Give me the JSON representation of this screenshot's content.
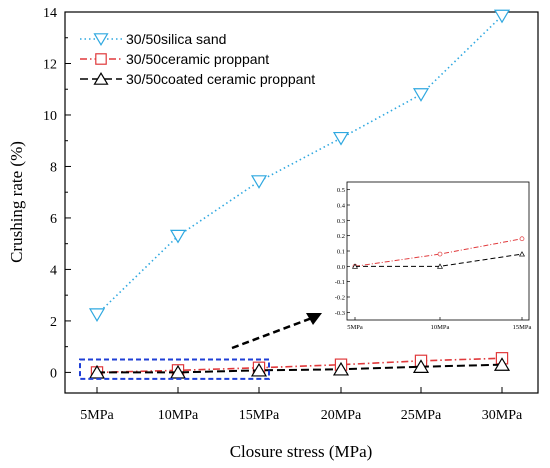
{
  "chart_data": {
    "type": "line",
    "title": "",
    "xlabel": "Closure stress (MPa)",
    "ylabel": "Crushing rate (%)",
    "categories": [
      "5MPa",
      "10MPa",
      "15MPa",
      "20MPa",
      "25MPa",
      "30MPa"
    ],
    "ylim": [
      -0.8,
      14
    ],
    "yticks": [
      "0",
      "2",
      "4",
      "6",
      "8",
      "10",
      "12",
      "14"
    ],
    "grid": false,
    "legend_position": "top-left",
    "series": [
      {
        "name": "30/50silica sand",
        "values": [
          2.25,
          5.3,
          7.42,
          9.1,
          10.8,
          13.85
        ],
        "color": "#2fa8e0",
        "marker": "triangle-down",
        "line_style": "dotted"
      },
      {
        "name": "30/50ceramic proppant",
        "values": [
          0.0,
          0.08,
          0.18,
          0.3,
          0.45,
          0.55
        ],
        "color": "#e0393b",
        "marker": "square",
        "line_style": "dash-dot"
      },
      {
        "name": "30/50coated ceramic proppant",
        "values": [
          0.0,
          0.0,
          0.08,
          0.12,
          0.22,
          0.3
        ],
        "color": "#000000",
        "marker": "triangle-up",
        "line_style": "dashed"
      }
    ],
    "inset": {
      "categories": [
        "5MPa",
        "10MPa",
        "15MPa"
      ],
      "ylim": [
        -0.35,
        0.55
      ],
      "yticks": [
        "0.5",
        "0.4",
        "0.3",
        "0.2",
        "0.1",
        "0.0",
        "-0.1",
        "-0.2",
        "-0.3"
      ],
      "series": [
        {
          "name": "30/50ceramic proppant",
          "values": [
            0.0,
            0.08,
            0.18
          ],
          "color": "#e0393b"
        },
        {
          "name": "30/50coated ceramic proppant",
          "values": [
            0.0,
            0.0,
            0.08
          ],
          "color": "#000000"
        }
      ]
    },
    "highlight_box_color": "#1f3fd6"
  }
}
